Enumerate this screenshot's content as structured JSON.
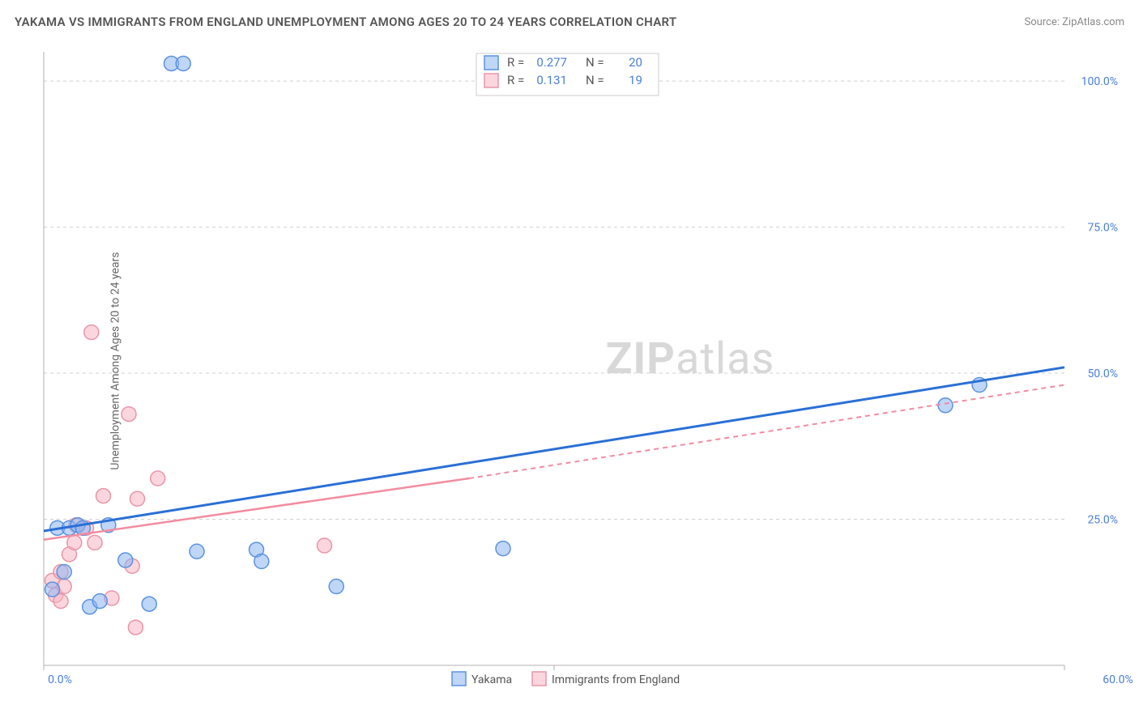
{
  "title": "YAKAMA VS IMMIGRANTS FROM ENGLAND UNEMPLOYMENT AMONG AGES 20 TO 24 YEARS CORRELATION CHART",
  "source": "Source: ZipAtlas.com",
  "ylabel": "Unemployment Among Ages 20 to 24 years",
  "watermark_zip": "ZIP",
  "watermark_atlas": "atlas",
  "chart": {
    "type": "scatter",
    "xlim": [
      0,
      60
    ],
    "ylim": [
      0,
      105
    ],
    "x_ticks": [
      0,
      30,
      60
    ],
    "x_tick_labels": [
      "0.0%",
      "",
      "60.0%"
    ],
    "y_ticks": [
      25,
      50,
      75,
      100
    ],
    "y_tick_labels": [
      "25.0%",
      "50.0%",
      "75.0%",
      "100.0%"
    ],
    "background_color": "#ffffff",
    "grid_color": "#d0d0d0",
    "marker_radius": 9,
    "series": [
      {
        "name": "Yakama",
        "color_fill": "rgba(140,180,240,0.55)",
        "color_stroke": "#5a93e0",
        "trend_color": "#2a6fd6",
        "trend_width": 3,
        "R": "0.277",
        "N": "20",
        "trend": {
          "x1": 0,
          "y1": 23,
          "x2": 60,
          "y2": 51
        },
        "points": [
          [
            7.5,
            103
          ],
          [
            8.2,
            103
          ],
          [
            0.8,
            23.5
          ],
          [
            1.2,
            16
          ],
          [
            1.5,
            23.5
          ],
          [
            2.0,
            24
          ],
          [
            2.3,
            23.5
          ],
          [
            2.7,
            10
          ],
          [
            3.3,
            11
          ],
          [
            3.8,
            24
          ],
          [
            4.8,
            18
          ],
          [
            6.2,
            10.5
          ],
          [
            9.0,
            19.5
          ],
          [
            12.5,
            19.8
          ],
          [
            12.8,
            17.8
          ],
          [
            17.2,
            13.5
          ],
          [
            27.0,
            20
          ],
          [
            53.0,
            44.5
          ],
          [
            55.0,
            48
          ],
          [
            0.5,
            13
          ]
        ]
      },
      {
        "name": "Immigrants from England",
        "color_fill": "rgba(250,180,195,0.55)",
        "color_stroke": "#e895a8",
        "trend_color": "#f28ca0",
        "trend_width": 2.5,
        "R": "0.131",
        "N": "19",
        "trend_solid": {
          "x1": 0,
          "y1": 21.5,
          "x2": 25,
          "y2": 32
        },
        "trend_dash": {
          "x1": 25,
          "y1": 32,
          "x2": 60,
          "y2": 48
        },
        "points": [
          [
            2.8,
            57
          ],
          [
            5.0,
            43
          ],
          [
            3.5,
            29
          ],
          [
            5.5,
            28.5
          ],
          [
            6.7,
            32
          ],
          [
            0.5,
            14.5
          ],
          [
            0.7,
            12
          ],
          [
            1.0,
            11
          ],
          [
            1.2,
            13.5
          ],
          [
            1.5,
            19
          ],
          [
            1.8,
            21
          ],
          [
            1.9,
            24
          ],
          [
            2.5,
            23.5
          ],
          [
            3.0,
            21
          ],
          [
            4.0,
            11.5
          ],
          [
            5.2,
            17
          ],
          [
            5.4,
            6.5
          ],
          [
            16.5,
            20.5
          ],
          [
            1.0,
            16
          ]
        ]
      }
    ],
    "legend_top": {
      "rows": [
        {
          "swatch": "blue",
          "r_label": "R =",
          "r_val": "0.277",
          "n_label": "N =",
          "n_val": "20"
        },
        {
          "swatch": "pink",
          "r_label": "R =",
          "r_val": "0.131",
          "n_label": "N =",
          "n_val": "19"
        }
      ]
    },
    "legend_bottom": [
      {
        "swatch": "blue",
        "label": "Yakama"
      },
      {
        "swatch": "pink",
        "label": "Immigrants from England"
      }
    ]
  }
}
